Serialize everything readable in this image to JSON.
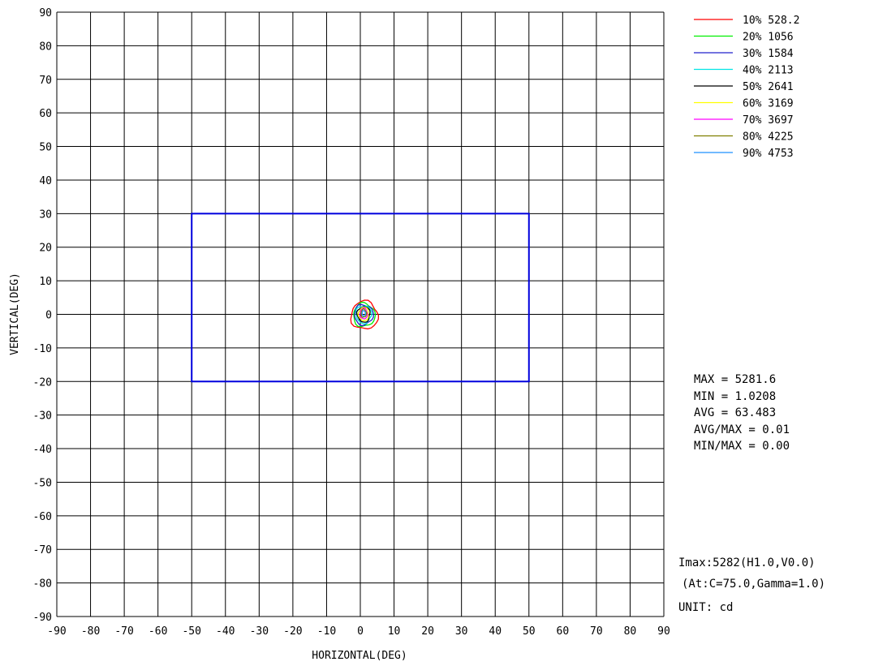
{
  "chart_data": {
    "type": "contour",
    "xlabel": "HORIZONTAL(DEG)",
    "ylabel": "VERTICAL(DEG)",
    "xlim": [
      -90,
      90
    ],
    "ylim": [
      -90,
      90
    ],
    "xticks": [
      -90,
      -80,
      -70,
      -60,
      -50,
      -40,
      -30,
      -20,
      -10,
      0,
      10,
      20,
      30,
      40,
      50,
      60,
      70,
      80,
      90
    ],
    "yticks": [
      90,
      80,
      70,
      60,
      50,
      40,
      30,
      20,
      10,
      0,
      -10,
      -20,
      -30,
      -40,
      -50,
      -60,
      -70,
      -80,
      -90
    ],
    "grid": true,
    "legend_position": "top-right",
    "legend": [
      {
        "label": "10% 528.2",
        "color": "#ff0000"
      },
      {
        "label": "20% 1056",
        "color": "#00ee00"
      },
      {
        "label": "30% 1584",
        "color": "#2222cc"
      },
      {
        "label": "40% 2113",
        "color": "#00e5e5"
      },
      {
        "label": "50% 2641",
        "color": "#000000"
      },
      {
        "label": "60% 3169",
        "color": "#ffff00"
      },
      {
        "label": "70% 3697",
        "color": "#ff00ff"
      },
      {
        "label": "80% 4225",
        "color": "#808000"
      },
      {
        "label": "90% 4753",
        "color": "#1e90ff"
      }
    ],
    "contours": [
      {
        "level": "10%",
        "color": "#ff0000",
        "center": [
          1.2,
          -0.3
        ],
        "rx": 4.0,
        "ry": 4.2
      },
      {
        "level": "20%",
        "color": "#00ee00",
        "center": [
          1.1,
          -0.2
        ],
        "rx": 3.2,
        "ry": 3.5
      },
      {
        "level": "30%",
        "color": "#2222cc",
        "center": [
          1.0,
          -0.1
        ],
        "rx": 2.8,
        "ry": 3.0
      },
      {
        "level": "40%",
        "color": "#00e5e5",
        "center": [
          1.0,
          0.0
        ],
        "rx": 2.3,
        "ry": 2.6
      },
      {
        "level": "50%",
        "color": "#000000",
        "center": [
          1.0,
          0.0
        ],
        "rx": 1.9,
        "ry": 2.3
      },
      {
        "level": "60%",
        "color": "#ffff00",
        "center": [
          1.0,
          0.1
        ],
        "rx": 1.5,
        "ry": 2.0
      },
      {
        "level": "70%",
        "color": "#ff00ff",
        "center": [
          1.0,
          0.2
        ],
        "rx": 1.1,
        "ry": 1.6
      },
      {
        "level": "80%",
        "color": "#808000",
        "center": [
          1.0,
          0.3
        ],
        "rx": 0.8,
        "ry": 1.2
      },
      {
        "level": "90%",
        "color": "#1e90ff",
        "center": [
          1.0,
          0.3
        ],
        "rx": 0.5,
        "ry": 0.8
      }
    ],
    "region_rectangle": {
      "x1": -50,
      "x2": 50,
      "y1": -20,
      "y2": 30,
      "color": "#0000dd"
    },
    "stats": {
      "max": "MAX = 5281.6",
      "min": "MIN = 1.0208",
      "avg": "AVG = 63.483",
      "avg_max": "AVG/MAX = 0.01",
      "min_max": "MIN/MAX = 0.00"
    },
    "imax": "Imax:5282(H1.0,V0.0)",
    "condition": "(At:C=75.0,Gamma=1.0)",
    "unit": "UNIT: cd"
  }
}
